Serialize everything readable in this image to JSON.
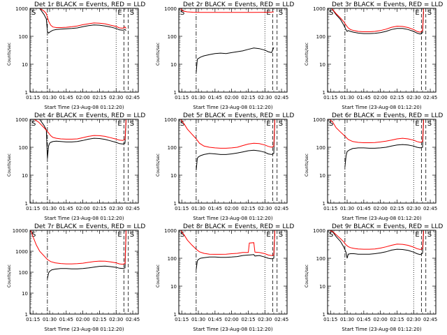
{
  "x_ticks": [
    "01:15",
    "01:30",
    "01:45",
    "02:00",
    "02:15",
    "02:30",
    "02:45"
  ],
  "y_ticks": [
    "1",
    "10",
    "100",
    "1000",
    "10000"
  ],
  "ylabel": "Counts/sec",
  "xlabel": "Start Time (23-Aug-08 01:12:20)",
  "markers": {
    "start": "S",
    "end": "E",
    "saa": "S"
  },
  "colors": {
    "events": "#000000",
    "lld": "#ff0000",
    "axes": "#000000"
  },
  "chart_data": [
    {
      "type": "line",
      "title": "Det 1r BLACK = Events, RED = LLD",
      "ylim": [
        1,
        1000
      ],
      "log_y": true,
      "x_range": [
        "01:12:20",
        "02:50"
      ],
      "series": [
        {
          "name": "Events",
          "x": [
            "01:21",
            "01:25",
            "01:27",
            "01:28",
            "01:29",
            "01:30",
            "01:31",
            "01:33",
            "01:36",
            "01:40",
            "01:45",
            "01:50",
            "01:55",
            "02:00",
            "02:05",
            "02:10",
            "02:15",
            "02:20",
            "02:25",
            "02:30",
            "02:33",
            "02:36",
            "02:38",
            "02:39"
          ],
          "values": [
            1000,
            600,
            420,
            150,
            130,
            140,
            150,
            165,
            175,
            180,
            185,
            190,
            200,
            220,
            240,
            255,
            250,
            235,
            215,
            190,
            170,
            165,
            175,
            160
          ]
        },
        {
          "name": "LLD",
          "x": [
            "01:21",
            "01:25",
            "01:27",
            "01:29",
            "01:31",
            "01:33",
            "01:36",
            "01:40",
            "01:45",
            "01:50",
            "01:55",
            "02:00",
            "02:05",
            "02:10",
            "02:15",
            "02:20",
            "02:25",
            "02:30",
            "02:33",
            "02:36",
            "02:38",
            "02:39"
          ],
          "values": [
            1000,
            800,
            650,
            350,
            250,
            215,
            205,
            205,
            210,
            220,
            235,
            260,
            280,
            300,
            295,
            280,
            250,
            225,
            200,
            195,
            215,
            190
          ]
        }
      ]
    },
    {
      "type": "line",
      "title": "Det 2r BLACK = Events, RED = LLD",
      "ylim": [
        1,
        1000
      ],
      "log_y": true,
      "x_range": [
        "01:12:20",
        "02:50"
      ],
      "series": [
        {
          "name": "Events",
          "x": [
            "01:28",
            "01:29",
            "01:30",
            "01:32",
            "01:35",
            "01:40",
            "01:45",
            "01:50",
            "01:55",
            "02:00",
            "02:05",
            "02:10",
            "02:15",
            "02:20",
            "02:25",
            "02:30",
            "02:33",
            "02:36",
            "02:38"
          ],
          "values": [
            5,
            15,
            16,
            18,
            20,
            22,
            24,
            25,
            24,
            26,
            28,
            30,
            34,
            38,
            36,
            32,
            28,
            26,
            40
          ]
        },
        {
          "name": "LLD",
          "x": [
            "01:14",
            "01:16",
            "01:20",
            "01:25",
            "01:30",
            "01:40",
            "01:50",
            "02:00",
            "02:10",
            "02:20",
            "02:30",
            "02:35",
            "02:38"
          ],
          "values": [
            1000,
            800,
            750,
            730,
            720,
            720,
            715,
            715,
            715,
            720,
            725,
            730,
            750
          ]
        }
      ]
    },
    {
      "type": "line",
      "title": "Det 3r BLACK = Events, RED = LLD",
      "ylim": [
        1,
        1000
      ],
      "log_y": true,
      "x_range": [
        "01:12:20",
        "02:50"
      ],
      "series": [
        {
          "name": "Events",
          "x": [
            "01:16",
            "01:20",
            "01:24",
            "01:27",
            "01:29",
            "01:30",
            "01:31",
            "01:33",
            "01:36",
            "01:40",
            "01:45",
            "01:50",
            "01:55",
            "02:00",
            "02:05",
            "02:10",
            "02:15",
            "02:20",
            "02:25",
            "02:30",
            "02:33",
            "02:36",
            "02:38",
            "02:39"
          ],
          "values": [
            1000,
            600,
            400,
            250,
            170,
            150,
            160,
            150,
            140,
            130,
            125,
            125,
            128,
            135,
            150,
            175,
            190,
            190,
            175,
            150,
            130,
            120,
            135,
            800
          ]
        },
        {
          "name": "LLD",
          "x": [
            "01:16",
            "01:20",
            "01:24",
            "01:27",
            "01:29",
            "01:31",
            "01:33",
            "01:36",
            "01:40",
            "01:45",
            "01:50",
            "01:55",
            "02:00",
            "02:05",
            "02:10",
            "02:15",
            "02:20",
            "02:25",
            "02:30",
            "02:33",
            "02:36",
            "02:38",
            "02:39"
          ],
          "values": [
            1000,
            650,
            450,
            330,
            250,
            200,
            175,
            160,
            150,
            145,
            145,
            150,
            160,
            180,
            210,
            230,
            225,
            205,
            175,
            150,
            140,
            160,
            1000
          ]
        }
      ]
    },
    {
      "type": "line",
      "title": "Det 4r BLACK = Events, RED = LLD",
      "ylim": [
        1,
        1000
      ],
      "log_y": true,
      "x_range": [
        "01:12:20",
        "02:50"
      ],
      "series": [
        {
          "name": "Events",
          "x": [
            "01:21",
            "01:25",
            "01:27",
            "01:28",
            "01:29",
            "01:30",
            "01:31",
            "01:33",
            "01:36",
            "01:40",
            "01:45",
            "01:50",
            "01:55",
            "02:00",
            "02:05",
            "02:10",
            "02:15",
            "02:20",
            "02:25",
            "02:30",
            "02:33",
            "02:36",
            "02:38",
            "02:39"
          ],
          "values": [
            1000,
            600,
            420,
            40,
            110,
            140,
            150,
            160,
            165,
            160,
            155,
            155,
            160,
            175,
            195,
            210,
            205,
            190,
            170,
            150,
            135,
            130,
            140,
            900
          ]
        },
        {
          "name": "LLD",
          "x": [
            "01:16",
            "01:20",
            "01:25",
            "01:29",
            "01:31",
            "01:33",
            "01:36",
            "01:40",
            "01:45",
            "01:50",
            "01:55",
            "02:00",
            "02:05",
            "02:10",
            "02:15",
            "02:20",
            "02:25",
            "02:30",
            "02:33",
            "02:36",
            "02:38",
            "02:39"
          ],
          "values": [
            1000,
            800,
            500,
            330,
            260,
            225,
            210,
            200,
            195,
            195,
            200,
            220,
            245,
            265,
            260,
            245,
            220,
            195,
            180,
            175,
            190,
            1000
          ]
        }
      ]
    },
    {
      "type": "line",
      "title": "Det 5r BLACK = Events, RED = LLD",
      "ylim": [
        1,
        1000
      ],
      "log_y": true,
      "x_range": [
        "01:12:20",
        "02:50"
      ],
      "series": [
        {
          "name": "Events",
          "x": [
            "01:28",
            "01:29",
            "01:30",
            "01:32",
            "01:35",
            "01:40",
            "01:45",
            "01:50",
            "01:55",
            "02:00",
            "02:05",
            "02:10",
            "02:15",
            "02:20",
            "02:25",
            "02:30",
            "02:33",
            "02:36",
            "02:38",
            "02:39"
          ],
          "values": [
            15,
            40,
            45,
            50,
            55,
            60,
            58,
            55,
            55,
            58,
            62,
            68,
            75,
            78,
            74,
            66,
            58,
            55,
            60,
            900
          ]
        },
        {
          "name": "LLD",
          "x": [
            "01:14",
            "01:17",
            "01:20",
            "01:24",
            "01:28",
            "01:31",
            "01:35",
            "01:40",
            "01:45",
            "01:50",
            "01:55",
            "02:00",
            "02:05",
            "02:10",
            "02:15",
            "02:20",
            "02:25",
            "02:30",
            "02:33",
            "02:36",
            "02:38",
            "02:39"
          ],
          "values": [
            1000,
            700,
            450,
            300,
            200,
            140,
            110,
            100,
            95,
            92,
            92,
            95,
            100,
            115,
            130,
            140,
            135,
            120,
            108,
            100,
            110,
            1000
          ]
        }
      ]
    },
    {
      "type": "line",
      "title": "Det 6r BLACK = Events, RED = LLD",
      "ylim": [
        1,
        1000
      ],
      "log_y": true,
      "x_range": [
        "01:12:20",
        "02:50"
      ],
      "series": [
        {
          "name": "Events",
          "x": [
            "01:28",
            "01:29",
            "01:30",
            "01:32",
            "01:35",
            "01:40",
            "01:45",
            "01:50",
            "01:55",
            "02:00",
            "02:05",
            "02:10",
            "02:15",
            "02:20",
            "02:25",
            "02:30",
            "02:33",
            "02:36",
            "02:38",
            "02:39"
          ],
          "values": [
            20,
            50,
            70,
            80,
            90,
            95,
            95,
            92,
            92,
            95,
            100,
            110,
            120,
            125,
            120,
            110,
            100,
            95,
            100,
            900
          ]
        },
        {
          "name": "LLD",
          "x": [
            "01:14",
            "01:17",
            "01:20",
            "01:24",
            "01:28",
            "01:31",
            "01:35",
            "01:40",
            "01:45",
            "01:50",
            "01:55",
            "02:00",
            "02:05",
            "02:10",
            "02:15",
            "02:20",
            "02:25",
            "02:30",
            "02:33",
            "02:36",
            "02:38",
            "02:39"
          ],
          "values": [
            1000,
            800,
            500,
            350,
            250,
            190,
            160,
            150,
            145,
            145,
            148,
            155,
            165,
            180,
            200,
            210,
            200,
            180,
            160,
            150,
            160,
            1000
          ]
        }
      ]
    },
    {
      "type": "line",
      "title": "Det 7r BLACK = Events, RED = LLD",
      "ylim": [
        1,
        10000
      ],
      "log_y": true,
      "x_range": [
        "01:12:20",
        "02:50"
      ],
      "series": [
        {
          "name": "Events",
          "x": [
            "01:28",
            "01:29",
            "01:30",
            "01:32",
            "01:35",
            "01:40",
            "01:45",
            "01:50",
            "01:55",
            "02:00",
            "02:05",
            "02:10",
            "02:15",
            "02:20",
            "02:25",
            "02:30",
            "02:33",
            "02:36",
            "02:38",
            "02:39"
          ],
          "values": [
            50,
            90,
            110,
            130,
            140,
            150,
            150,
            145,
            145,
            150,
            160,
            175,
            190,
            195,
            185,
            170,
            155,
            150,
            160,
            8000
          ]
        },
        {
          "name": "LLD",
          "x": [
            "01:13",
            "01:15",
            "01:18",
            "01:21",
            "01:25",
            "01:28",
            "01:31",
            "01:35",
            "01:40",
            "01:45",
            "01:50",
            "01:55",
            "02:00",
            "02:05",
            "02:10",
            "02:15",
            "02:20",
            "02:25",
            "02:30",
            "02:33",
            "02:36",
            "02:38",
            "02:39"
          ],
          "values": [
            10000,
            5000,
            2000,
            1000,
            600,
            400,
            320,
            280,
            260,
            250,
            250,
            255,
            270,
            295,
            320,
            340,
            335,
            310,
            280,
            250,
            240,
            260,
            10000
          ]
        }
      ]
    },
    {
      "type": "line",
      "title": "Det 8r BLACK = Events, RED = LLD",
      "ylim": [
        1,
        1000
      ],
      "log_y": true,
      "x_range": [
        "01:12:20",
        "02:50"
      ],
      "series": [
        {
          "name": "Events",
          "x": [
            "01:28",
            "01:29",
            "01:30",
            "01:32",
            "01:35",
            "01:40",
            "01:45",
            "01:50",
            "01:55",
            "02:00",
            "02:05",
            "02:10",
            "02:15",
            "02:16",
            "02:20",
            "02:21",
            "02:25",
            "02:30",
            "02:33",
            "02:36",
            "02:38",
            "02:39"
          ],
          "values": [
            40,
            80,
            90,
            100,
            105,
            110,
            110,
            108,
            108,
            110,
            115,
            125,
            130,
            130,
            135,
            120,
            125,
            110,
            100,
            95,
            100,
            900
          ]
        },
        {
          "name": "LLD",
          "x": [
            "01:14",
            "01:17",
            "01:20",
            "01:24",
            "01:28",
            "01:31",
            "01:35",
            "01:40",
            "01:45",
            "01:50",
            "01:55",
            "02:00",
            "02:05",
            "02:10",
            "02:15",
            "02:16",
            "02:20",
            "02:21",
            "02:25",
            "02:30",
            "02:33",
            "02:36",
            "02:38",
            "02:39"
          ],
          "values": [
            1000,
            700,
            450,
            300,
            210,
            170,
            150,
            140,
            138,
            138,
            140,
            145,
            150,
            160,
            160,
            350,
            360,
            165,
            160,
            145,
            130,
            125,
            130,
            1000
          ]
        }
      ]
    },
    {
      "type": "line",
      "title": "Det 9r BLACK = Events, RED = LLD",
      "ylim": [
        1,
        1000
      ],
      "log_y": true,
      "x_range": [
        "01:12:20",
        "02:50"
      ],
      "series": [
        {
          "name": "Events",
          "x": [
            "01:16",
            "01:20",
            "01:24",
            "01:27",
            "01:29",
            "01:30",
            "01:31",
            "01:33",
            "01:36",
            "01:40",
            "01:45",
            "01:50",
            "01:55",
            "02:00",
            "02:05",
            "02:10",
            "02:15",
            "02:20",
            "02:25",
            "02:30",
            "02:33",
            "02:36",
            "02:38",
            "02:39"
          ],
          "values": [
            1000,
            600,
            400,
            250,
            160,
            100,
            140,
            145,
            145,
            140,
            140,
            140,
            145,
            155,
            170,
            195,
            210,
            205,
            190,
            165,
            145,
            135,
            150,
            900
          ]
        },
        {
          "name": "LLD",
          "x": [
            "01:14",
            "01:17",
            "01:20",
            "01:24",
            "01:27",
            "01:29",
            "01:31",
            "01:33",
            "01:36",
            "01:40",
            "01:45",
            "01:50",
            "01:55",
            "02:00",
            "02:05",
            "02:10",
            "02:15",
            "02:20",
            "02:25",
            "02:30",
            "02:33",
            "02:36",
            "02:38",
            "02:39"
          ],
          "values": [
            1000,
            900,
            700,
            500,
            380,
            300,
            260,
            240,
            225,
            215,
            210,
            210,
            215,
            230,
            255,
            290,
            320,
            315,
            290,
            250,
            220,
            205,
            220,
            1000
          ]
        }
      ]
    }
  ],
  "vlines": [
    {
      "style": "dash-dot",
      "x": "01:28"
    },
    {
      "style": "dotted",
      "x": "02:30"
    },
    {
      "style": "dashed",
      "x": "02:37"
    },
    {
      "style": "dashed",
      "x": "02:41"
    }
  ]
}
